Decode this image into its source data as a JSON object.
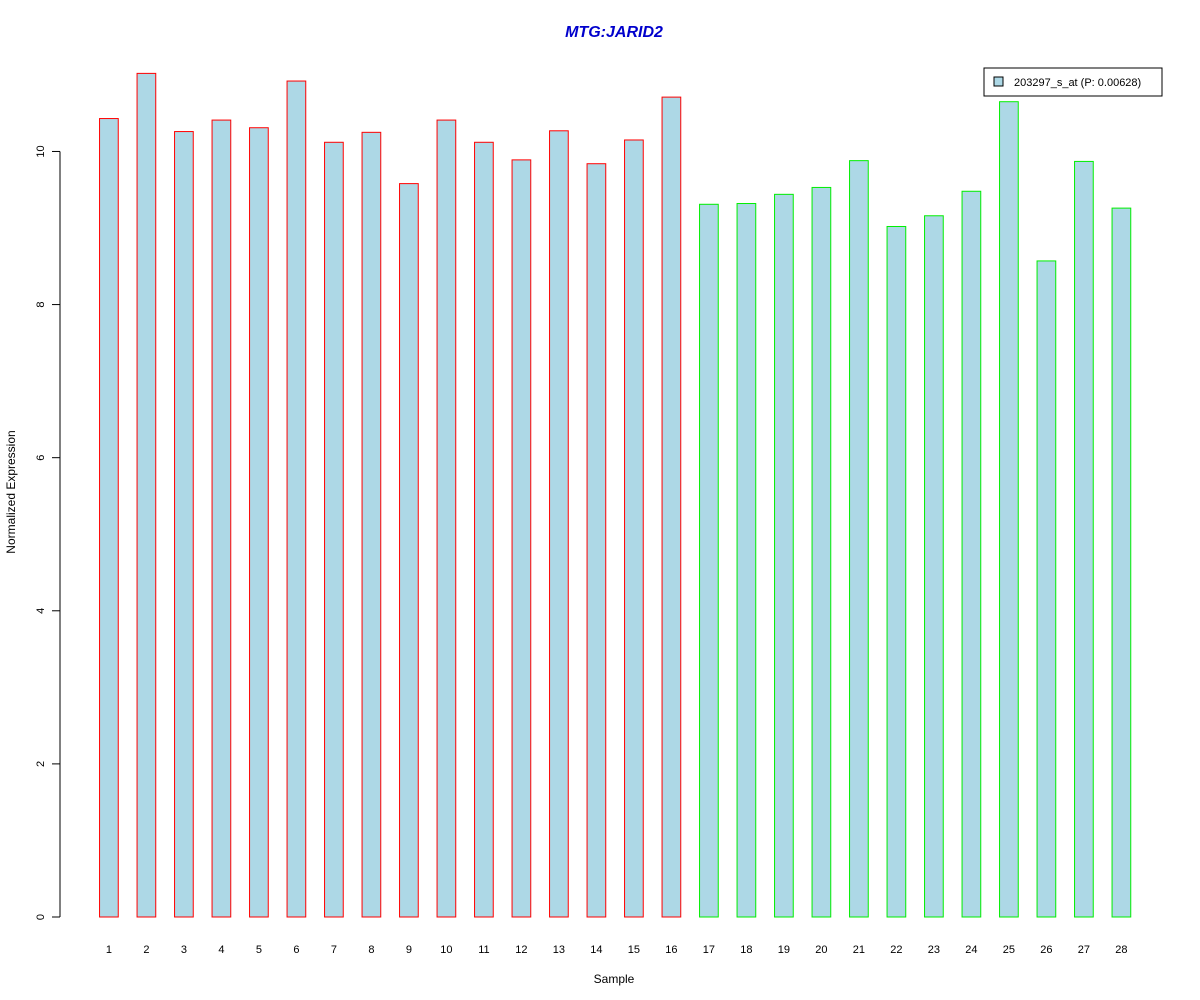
{
  "chart_data": {
    "type": "bar",
    "title": "MTG:JARID2",
    "title_color": "#0000cc",
    "xlabel": "Sample",
    "ylabel": "Normalized Expression",
    "ylim": [
      0,
      11.2
    ],
    "yticks": [
      0,
      2,
      4,
      6,
      8,
      10
    ],
    "grid": false,
    "fill_color": "#add8e6",
    "categories": [
      "1",
      "2",
      "3",
      "4",
      "5",
      "6",
      "7",
      "8",
      "9",
      "10",
      "11",
      "12",
      "13",
      "14",
      "15",
      "16",
      "17",
      "18",
      "19",
      "20",
      "21",
      "22",
      "23",
      "24",
      "25",
      "26",
      "27",
      "28"
    ],
    "series": [
      {
        "name": "203297_s_at (P: 0.00628)",
        "values": [
          10.43,
          11.02,
          10.26,
          10.41,
          10.31,
          10.92,
          10.12,
          10.25,
          9.58,
          10.41,
          10.12,
          9.89,
          10.27,
          9.84,
          10.15,
          10.71,
          9.31,
          9.32,
          9.44,
          9.53,
          9.88,
          9.02,
          9.16,
          9.48,
          10.65,
          8.57,
          9.87,
          9.26
        ]
      }
    ],
    "groups": [
      {
        "samples": [
          1,
          16
        ],
        "border_color": "#ff0000"
      },
      {
        "samples": [
          17,
          28
        ],
        "border_color": "#00ee00"
      }
    ],
    "legend": {
      "label": "203297_s_at (P: 0.00628)",
      "placement": "top-right"
    }
  }
}
